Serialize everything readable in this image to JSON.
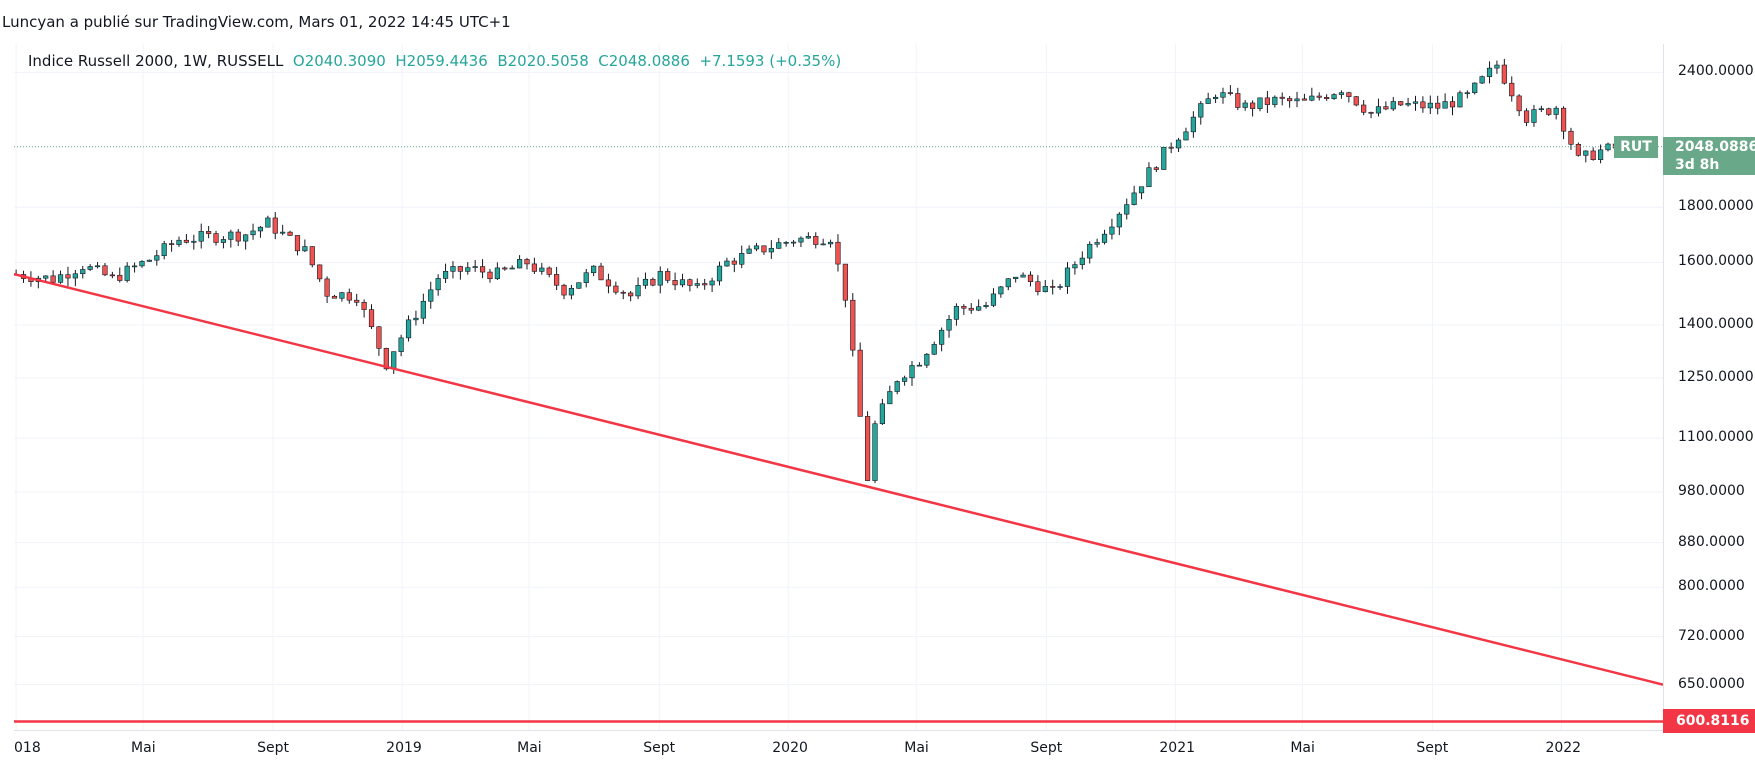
{
  "header": {
    "publisher_line": "Luncyan a publié sur TradingView.com, Mars 01, 2022 14:45 UTC+1"
  },
  "legend": {
    "name": "Indice Russell 2000, 1W, RUSSELL",
    "open": "O2040.3090",
    "high": "H2059.4436",
    "low": "B2020.5058",
    "close": "C2048.0886",
    "change": "+7.1593 (+0.35%)"
  },
  "price_tags": {
    "symbol": "RUT",
    "last_price": "2048.0886",
    "countdown": "3d 8h",
    "line_value": "600.8116"
  },
  "colors": {
    "up": "#26a69a",
    "down": "#ef5350",
    "trendline": "#f23645",
    "grid": "#f0f3fa",
    "last_price": "#6aa88a"
  },
  "chart_data": {
    "type": "candlestick",
    "symbol": "RUT",
    "interval": "1W",
    "y_scale": "log",
    "ylim": [
      590,
      2550
    ],
    "y_ticks": [
      "2400.0000",
      "1800.0000",
      "1600.0000",
      "1400.0000",
      "1250.0000",
      "1100.0000",
      "980.0000",
      "880.0000",
      "800.0000",
      "720.0000",
      "650.0000"
    ],
    "x_ticks": [
      {
        "label": "018",
        "date": "2018-01-01"
      },
      {
        "label": "Mai",
        "date": "2018-05-01"
      },
      {
        "label": "Sept",
        "date": "2018-09-01"
      },
      {
        "label": "2019",
        "date": "2019-01-01"
      },
      {
        "label": "Mai",
        "date": "2019-05-01"
      },
      {
        "label": "Sept",
        "date": "2019-09-01"
      },
      {
        "label": "2020",
        "date": "2020-01-01"
      },
      {
        "label": "Mai",
        "date": "2020-05-01"
      },
      {
        "label": "Sept",
        "date": "2020-09-01"
      },
      {
        "label": "2021",
        "date": "2021-01-01"
      },
      {
        "label": "Mai",
        "date": "2021-05-01"
      },
      {
        "label": "Sept",
        "date": "2021-09-01"
      },
      {
        "label": "2022",
        "date": "2022-01-01"
      }
    ],
    "x_range": [
      "2017-12-30",
      "2022-04-07"
    ],
    "grid": true,
    "closes": [
      {
        "date": "2018-01-01",
        "close": 1560
      },
      {
        "date": "2018-02-05",
        "close": 1545
      },
      {
        "date": "2018-03-05",
        "close": 1590
      },
      {
        "date": "2018-04-02",
        "close": 1545
      },
      {
        "date": "2018-05-07",
        "close": 1610
      },
      {
        "date": "2018-06-04",
        "close": 1680
      },
      {
        "date": "2018-07-02",
        "close": 1690
      },
      {
        "date": "2018-08-06",
        "close": 1700
      },
      {
        "date": "2018-08-27",
        "close": 1740
      },
      {
        "date": "2018-10-01",
        "close": 1640
      },
      {
        "date": "2018-10-22",
        "close": 1500
      },
      {
        "date": "2018-11-19",
        "close": 1490
      },
      {
        "date": "2018-12-17",
        "close": 1290
      },
      {
        "date": "2018-12-24",
        "close": 1330
      },
      {
        "date": "2019-02-04",
        "close": 1550
      },
      {
        "date": "2019-03-04",
        "close": 1580
      },
      {
        "date": "2019-04-01",
        "close": 1560
      },
      {
        "date": "2019-04-29",
        "close": 1600
      },
      {
        "date": "2019-06-03",
        "close": 1510
      },
      {
        "date": "2019-07-01",
        "close": 1570
      },
      {
        "date": "2019-08-05",
        "close": 1490
      },
      {
        "date": "2019-09-02",
        "close": 1560
      },
      {
        "date": "2019-10-07",
        "close": 1510
      },
      {
        "date": "2019-11-04",
        "close": 1600
      },
      {
        "date": "2019-12-02",
        "close": 1640
      },
      {
        "date": "2020-01-06",
        "close": 1680
      },
      {
        "date": "2020-02-10",
        "close": 1690
      },
      {
        "date": "2020-02-24",
        "close": 1490
      },
      {
        "date": "2020-03-16",
        "close": 1010
      },
      {
        "date": "2020-03-23",
        "close": 1130
      },
      {
        "date": "2020-04-13",
        "close": 1250
      },
      {
        "date": "2020-05-04",
        "close": 1300
      },
      {
        "date": "2020-06-08",
        "close": 1450
      },
      {
        "date": "2020-07-06",
        "close": 1460
      },
      {
        "date": "2020-08-03",
        "close": 1560
      },
      {
        "date": "2020-09-07",
        "close": 1500
      },
      {
        "date": "2020-10-05",
        "close": 1630
      },
      {
        "date": "2020-11-02",
        "close": 1750
      },
      {
        "date": "2020-11-30",
        "close": 1900
      },
      {
        "date": "2021-01-04",
        "close": 2100
      },
      {
        "date": "2021-02-08",
        "close": 2300
      },
      {
        "date": "2021-03-08",
        "close": 2230
      },
      {
        "date": "2021-04-05",
        "close": 2260
      },
      {
        "date": "2021-05-03",
        "close": 2250
      },
      {
        "date": "2021-06-07",
        "close": 2320
      },
      {
        "date": "2021-07-05",
        "close": 2200
      },
      {
        "date": "2021-08-02",
        "close": 2240
      },
      {
        "date": "2021-09-06",
        "close": 2230
      },
      {
        "date": "2021-10-04",
        "close": 2280
      },
      {
        "date": "2021-11-01",
        "close": 2440
      },
      {
        "date": "2021-11-29",
        "close": 2180
      },
      {
        "date": "2021-12-27",
        "close": 2230
      },
      {
        "date": "2022-01-17",
        "close": 1990
      },
      {
        "date": "2022-02-07",
        "close": 2030
      },
      {
        "date": "2022-02-28",
        "close": 2048.0886
      }
    ],
    "trendline": {
      "start": {
        "date": "2018-01-05",
        "price": 1555
      },
      "through": {
        "date": "2020-03-18",
        "price": 960
      },
      "value_at_right_edge": 650
    },
    "horizontal_line": 600.8116,
    "last_price": 2048.0886
  }
}
